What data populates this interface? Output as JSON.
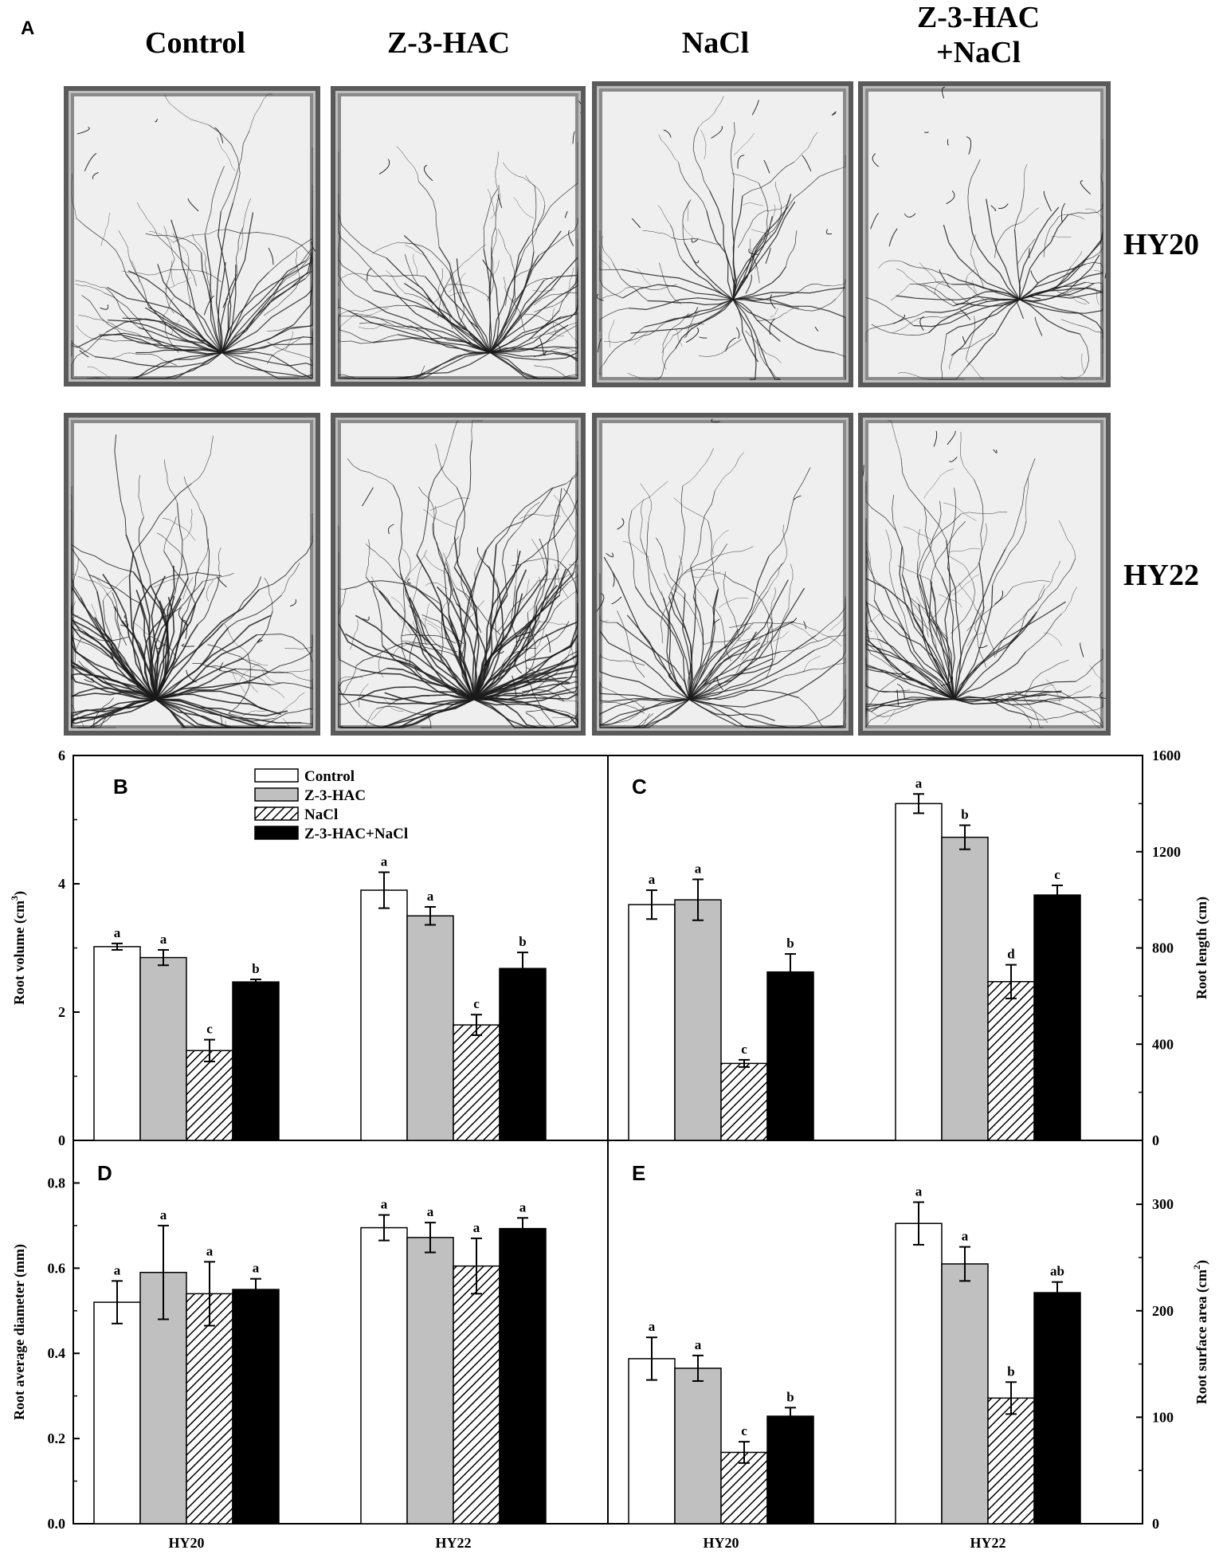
{
  "figure": {
    "panel_a_label": "A",
    "columns": [
      "Control",
      "Z-3-HAC",
      "NaCl",
      "Z-3-HAC\n+NaCl"
    ],
    "rows": [
      "HY20",
      "HY22"
    ]
  },
  "legend": [
    "Control",
    "Z-3-HAC",
    "NaCl",
    "Z-3-HAC+NaCl"
  ],
  "colors": {
    "control": "#ffffff",
    "z3hac": "#c0c0c0",
    "nacl_hatch": "#000000",
    "z3hac_nacl": "#000000",
    "photo_bg": "#efefef",
    "root": "#1a1a1a"
  },
  "chart_data": [
    {
      "panel": "B",
      "type": "bar",
      "categories": [
        "HY20",
        "HY22"
      ],
      "series": [
        {
          "name": "Control",
          "values": [
            3.02,
            3.9
          ],
          "errors": [
            0.05,
            0.28
          ],
          "letters": [
            "a",
            "a"
          ]
        },
        {
          "name": "Z-3-HAC",
          "values": [
            2.85,
            3.5
          ],
          "errors": [
            0.12,
            0.14
          ],
          "letters": [
            "a",
            "a"
          ]
        },
        {
          "name": "NaCl",
          "values": [
            1.4,
            1.8
          ],
          "errors": [
            0.17,
            0.16
          ],
          "letters": [
            "c",
            "c"
          ]
        },
        {
          "name": "Z-3-HAC+NaCl",
          "values": [
            2.47,
            2.68
          ],
          "errors": [
            0.04,
            0.25
          ],
          "letters": [
            "b",
            "b"
          ]
        }
      ],
      "ylabel": "Root volume (cm3)",
      "ylim": [
        0,
        6
      ],
      "yticks": [
        "0",
        "2",
        "4",
        "6"
      ],
      "axis_side": "left",
      "legend_position": "top-left"
    },
    {
      "panel": "C",
      "type": "bar",
      "categories": [
        "HY20",
        "HY22"
      ],
      "series": [
        {
          "name": "Control",
          "values": [
            980,
            1400
          ],
          "errors": [
            60,
            40
          ],
          "letters": [
            "a",
            "a"
          ]
        },
        {
          "name": "Z-3-HAC",
          "values": [
            1000,
            1260
          ],
          "errors": [
            85,
            50
          ],
          "letters": [
            "a",
            "b"
          ]
        },
        {
          "name": "NaCl",
          "values": [
            320,
            660
          ],
          "errors": [
            15,
            70
          ],
          "letters": [
            "c",
            "d"
          ]
        },
        {
          "name": "Z-3-HAC+NaCl",
          "values": [
            700,
            1020
          ],
          "errors": [
            75,
            40
          ],
          "letters": [
            "b",
            "c"
          ]
        }
      ],
      "ylabel": "Root length (cm)",
      "ylim": [
        0,
        1600
      ],
      "yticks": [
        "0",
        "400",
        "800",
        "1200",
        "1600"
      ],
      "axis_side": "right"
    },
    {
      "panel": "D",
      "type": "bar",
      "categories": [
        "HY20",
        "HY22"
      ],
      "series": [
        {
          "name": "Control",
          "values": [
            0.52,
            0.695
          ],
          "errors": [
            0.05,
            0.03
          ],
          "letters": [
            "a",
            "a"
          ]
        },
        {
          "name": "Z-3-HAC",
          "values": [
            0.59,
            0.672
          ],
          "errors": [
            0.11,
            0.035
          ],
          "letters": [
            "a",
            "a"
          ]
        },
        {
          "name": "NaCl",
          "values": [
            0.54,
            0.605
          ],
          "errors": [
            0.075,
            0.065
          ],
          "letters": [
            "a",
            "a"
          ]
        },
        {
          "name": "Z-3-HAC+NaCl",
          "values": [
            0.55,
            0.693
          ],
          "errors": [
            0.025,
            0.025
          ],
          "letters": [
            "a",
            "a"
          ]
        }
      ],
      "ylabel": "Root average diameter (mm)",
      "ylim": [
        0,
        0.9
      ],
      "yticks": [
        "0.0",
        "0.2",
        "0.4",
        "0.6",
        "0.8"
      ],
      "axis_side": "left"
    },
    {
      "panel": "E",
      "type": "bar",
      "categories": [
        "HY20",
        "HY22"
      ],
      "series": [
        {
          "name": "Control",
          "values": [
            155,
            282
          ],
          "errors": [
            20,
            20
          ],
          "letters": [
            "a",
            "a"
          ]
        },
        {
          "name": "Z-3-HAC",
          "values": [
            146,
            244
          ],
          "errors": [
            12,
            16
          ],
          "letters": [
            "a",
            "a"
          ]
        },
        {
          "name": "NaCl",
          "values": [
            67,
            118
          ],
          "errors": [
            10,
            15
          ],
          "letters": [
            "c",
            "b"
          ]
        },
        {
          "name": "Z-3-HAC+NaCl",
          "values": [
            101,
            217
          ],
          "errors": [
            8,
            10
          ],
          "letters": [
            "b",
            "ab"
          ]
        }
      ],
      "ylabel": "Root surface area (cm2)",
      "ylim": [
        0,
        360
      ],
      "yticks": [
        "0",
        "100",
        "200",
        "300"
      ],
      "axis_side": "right"
    }
  ]
}
